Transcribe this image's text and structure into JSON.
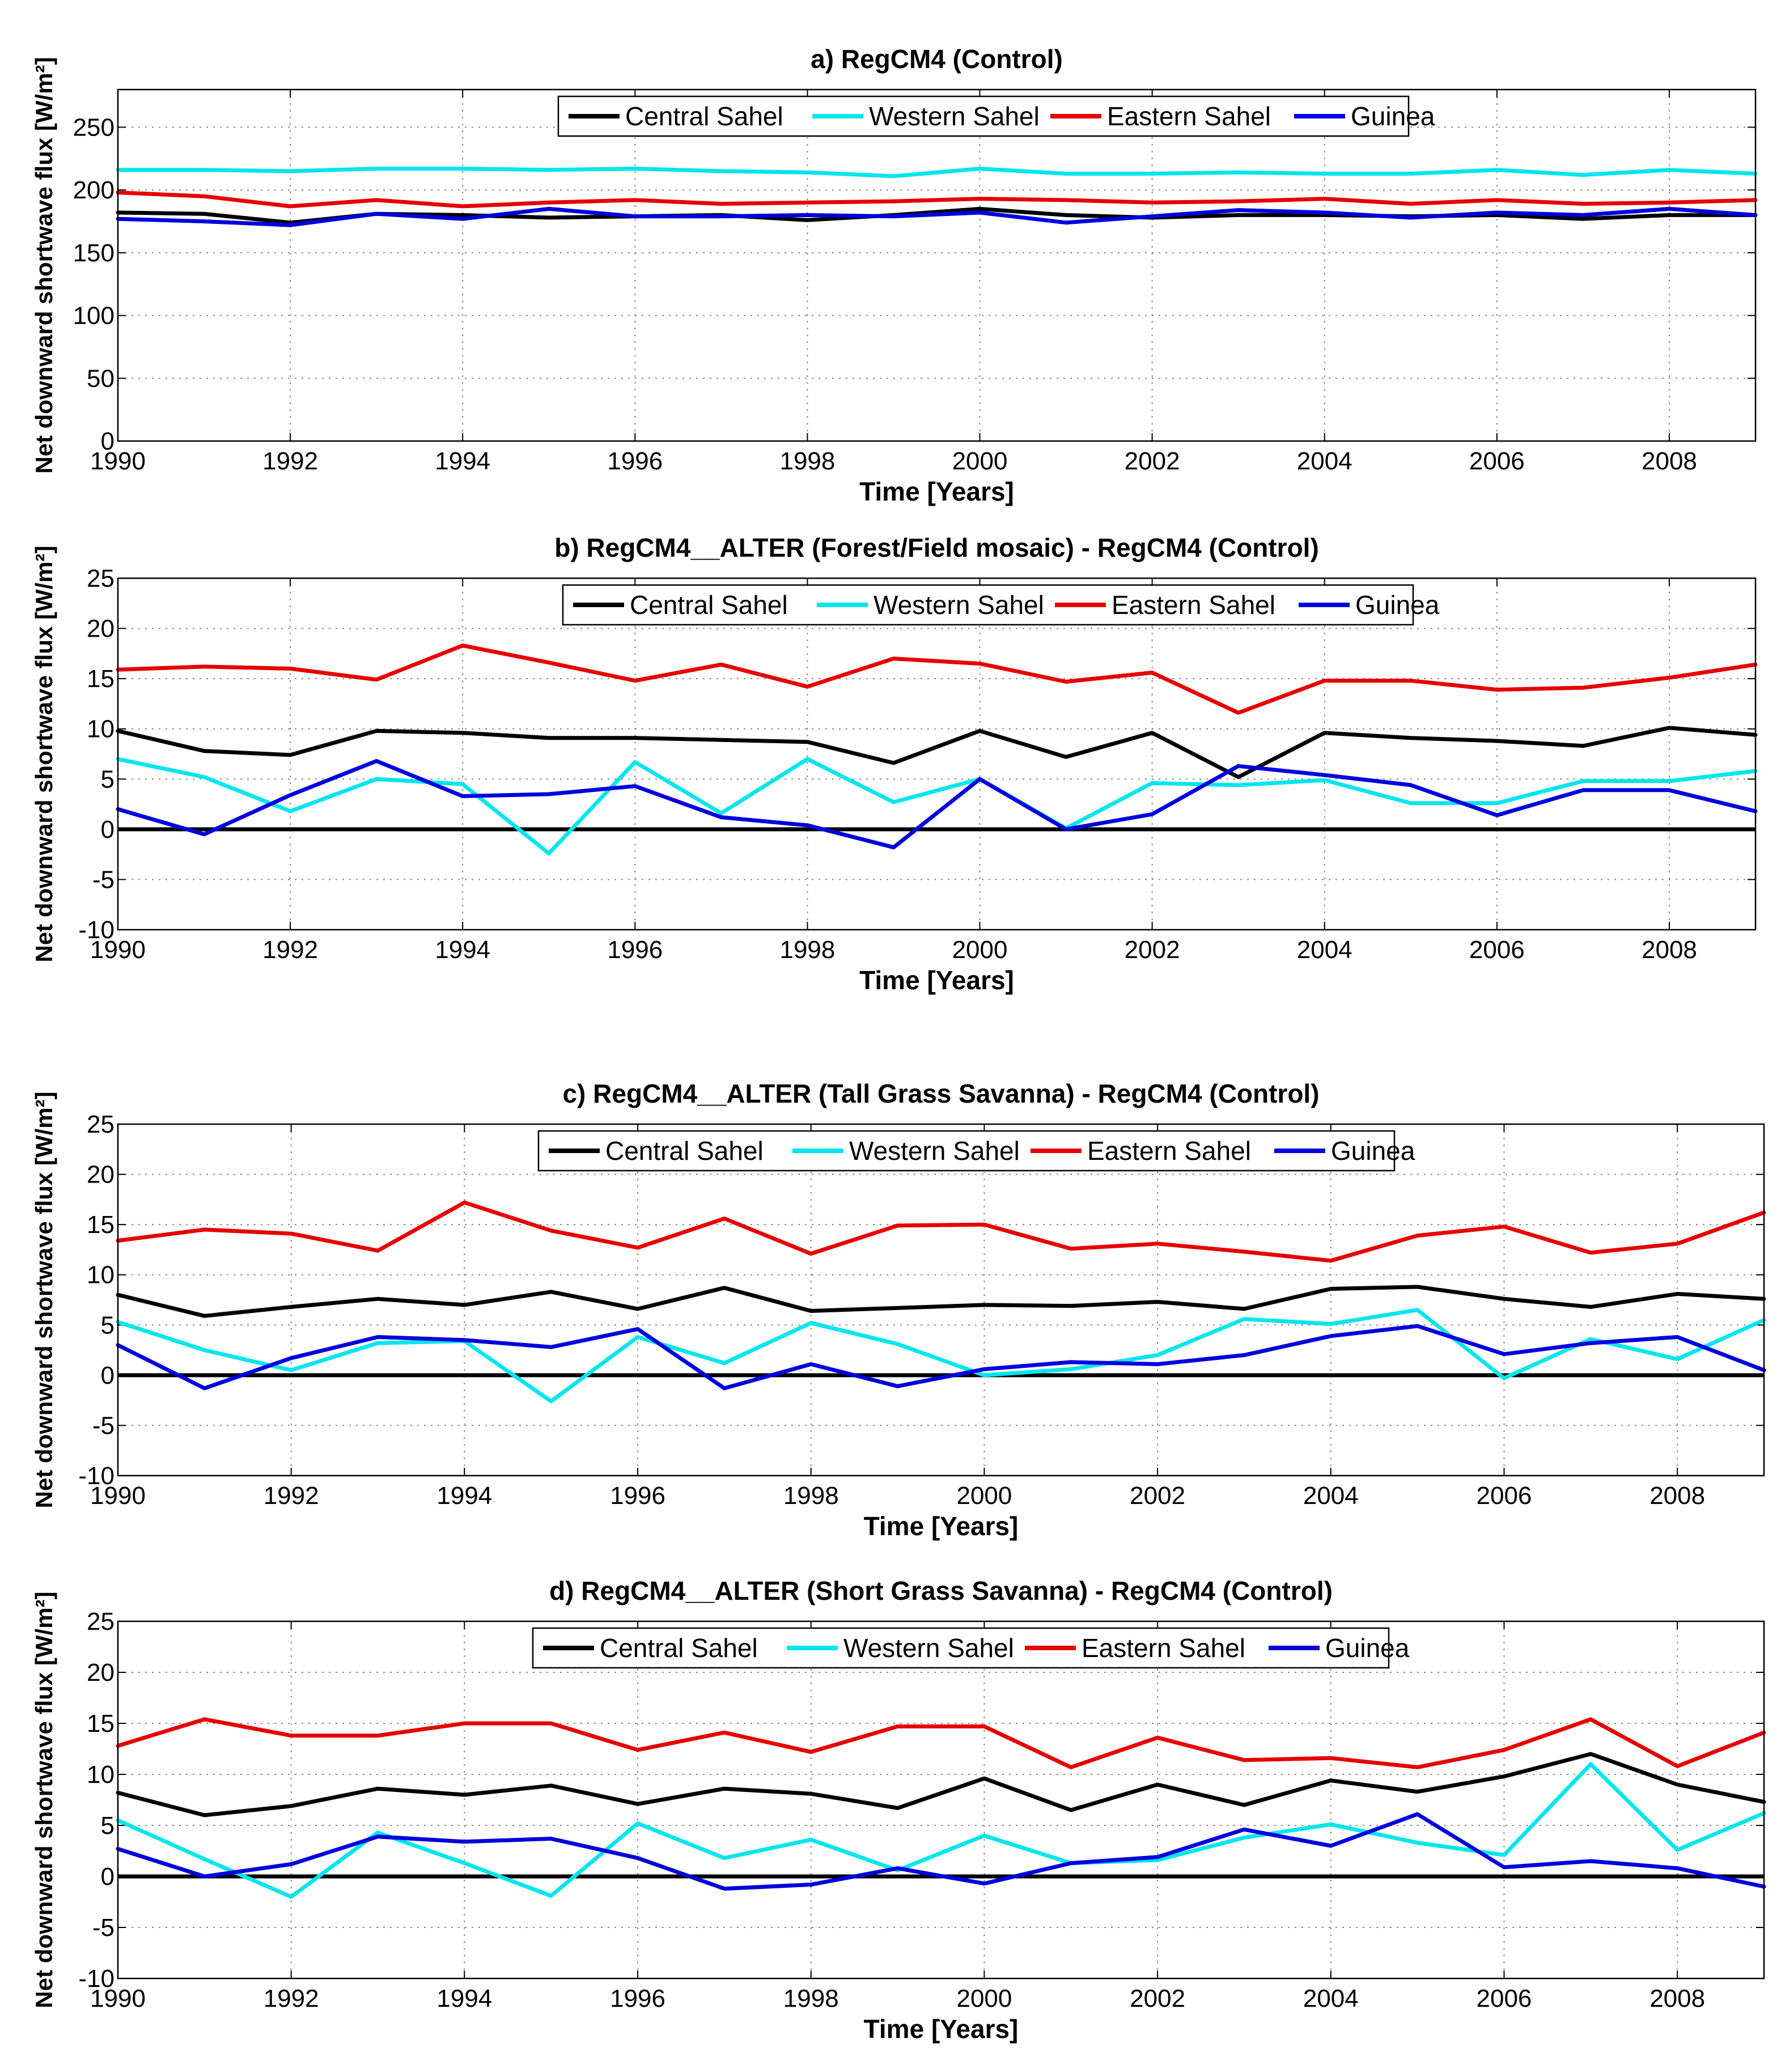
{
  "colors": {
    "Central Sahel": "#000000",
    "Western Sahel": "#00e5ee",
    "Eastern Sahel": "#e60000",
    "Guinea": "#0000dd",
    "zero_line": "#000000",
    "grid": "#888888"
  },
  "chart_data": [
    {
      "id": "a",
      "type": "line",
      "title": "a) RegCM4 (Control)",
      "xlabel": "Time [Years]",
      "ylabel": "Net downward shortwave flux  [W/m²]",
      "xlim": [
        1990,
        2009
      ],
      "ylim": [
        0,
        280
      ],
      "xticks": [
        1990,
        1992,
        1994,
        1996,
        1998,
        2000,
        2002,
        2004,
        2006,
        2008
      ],
      "yticks": [
        0,
        50,
        100,
        150,
        200,
        250
      ],
      "legend": [
        "Central Sahel",
        "Western Sahel",
        "Eastern Sahel",
        "Guinea"
      ],
      "legend_position": "top",
      "grid": true,
      "zero_line": false,
      "x": [
        1990,
        1991,
        1992,
        1993,
        1994,
        1995,
        1996,
        1997,
        1998,
        1999,
        2000,
        2001,
        2002,
        2003,
        2004,
        2005,
        2006,
        2007,
        2008,
        2009
      ],
      "series": [
        {
          "name": "Central Sahel",
          "values": [
            182,
            181,
            174,
            181,
            180,
            178,
            179,
            180,
            176,
            180,
            185,
            180,
            178,
            180,
            180,
            179,
            180,
            177,
            180,
            180
          ]
        },
        {
          "name": "Western Sahel",
          "values": [
            216,
            216,
            215,
            217,
            217,
            216,
            217,
            215,
            214,
            211,
            217,
            213,
            213,
            214,
            213,
            213,
            216,
            212,
            216,
            213
          ]
        },
        {
          "name": "Eastern Sahel",
          "values": [
            198,
            195,
            187,
            192,
            187,
            190,
            192,
            189,
            190,
            191,
            193,
            192,
            190,
            191,
            193,
            189,
            192,
            189,
            190,
            192
          ]
        },
        {
          "name": "Guinea",
          "values": [
            177,
            175,
            172,
            181,
            177,
            185,
            179,
            179,
            180,
            179,
            182,
            174,
            179,
            184,
            182,
            178,
            182,
            180,
            185,
            180
          ]
        }
      ]
    },
    {
      "id": "b",
      "type": "line",
      "title": "b) RegCM4__ALTER (Forest/Field mosaic) - RegCM4 (Control)",
      "xlabel": "Time [Years]",
      "ylabel": "Net downward shortwave flux  [W/m²]",
      "xlim": [
        1990,
        2009
      ],
      "ylim": [
        -10,
        25
      ],
      "xticks": [
        1990,
        1992,
        1994,
        1996,
        1998,
        2000,
        2002,
        2004,
        2006,
        2008
      ],
      "yticks": [
        -10,
        -5,
        0,
        5,
        10,
        15,
        20,
        25
      ],
      "legend": [
        "Central Sahel",
        "Western Sahel",
        "Eastern Sahel",
        "Guinea"
      ],
      "legend_position": "top",
      "grid": true,
      "zero_line": true,
      "x": [
        1990,
        1991,
        1992,
        1993,
        1994,
        1995,
        1996,
        1997,
        1998,
        1999,
        2000,
        2001,
        2002,
        2003,
        2004,
        2005,
        2006,
        2007,
        2008,
        2009
      ],
      "series": [
        {
          "name": "Central Sahel",
          "values": [
            9.8,
            7.8,
            7.4,
            9.8,
            9.6,
            9.1,
            9.1,
            8.9,
            8.7,
            6.6,
            9.8,
            7.2,
            9.6,
            5.2,
            9.6,
            9.1,
            8.8,
            8.3,
            10.1,
            9.4
          ]
        },
        {
          "name": "Western Sahel",
          "values": [
            7.0,
            5.2,
            1.8,
            5.0,
            4.5,
            -2.4,
            6.7,
            1.6,
            7.0,
            2.7,
            5.0,
            0.1,
            4.6,
            4.4,
            4.9,
            2.6,
            2.6,
            4.8,
            4.8,
            5.8
          ]
        },
        {
          "name": "Eastern Sahel",
          "values": [
            15.9,
            16.2,
            16.0,
            14.9,
            18.3,
            16.6,
            14.8,
            16.4,
            14.2,
            17.0,
            16.5,
            14.7,
            15.6,
            11.6,
            14.8,
            14.8,
            13.9,
            14.1,
            15.1,
            16.4
          ]
        },
        {
          "name": "Guinea",
          "values": [
            2.0,
            -0.5,
            3.4,
            6.8,
            3.3,
            3.5,
            4.3,
            1.2,
            0.4,
            -1.8,
            5.0,
            0.0,
            1.5,
            6.3,
            5.4,
            4.4,
            1.4,
            3.9,
            3.9,
            1.8
          ]
        }
      ]
    },
    {
      "id": "c",
      "type": "line",
      "title": "c)  RegCM4__ALTER (Tall Grass Savanna) - RegCM4 (Control)",
      "xlabel": "Time [Years]",
      "ylabel": "Net downward shortwave flux  [W/m²]",
      "xlim": [
        1990,
        2009
      ],
      "ylim": [
        -10,
        25
      ],
      "xticks": [
        1990,
        1992,
        1994,
        1996,
        1998,
        2000,
        2002,
        2004,
        2006,
        2008
      ],
      "yticks": [
        -10,
        -5,
        0,
        5,
        10,
        15,
        20,
        25
      ],
      "legend": [
        "Central Sahel",
        "Western Sahel",
        "Eastern Sahel",
        "Guinea"
      ],
      "legend_position": "top",
      "grid": true,
      "zero_line": true,
      "x": [
        1990,
        1991,
        1992,
        1993,
        1994,
        1995,
        1996,
        1997,
        1998,
        1999,
        2000,
        2001,
        2002,
        2003,
        2004,
        2005,
        2006,
        2007,
        2008,
        2009
      ],
      "series": [
        {
          "name": "Central Sahel",
          "values": [
            8.0,
            5.9,
            6.8,
            7.6,
            7.0,
            8.3,
            6.6,
            8.7,
            6.4,
            6.7,
            7.0,
            6.9,
            7.3,
            6.6,
            8.6,
            8.8,
            7.6,
            6.8,
            8.1,
            7.6
          ]
        },
        {
          "name": "Western Sahel",
          "values": [
            5.3,
            2.5,
            0.5,
            3.2,
            3.4,
            -2.6,
            3.8,
            1.2,
            5.2,
            3.1,
            0.0,
            0.6,
            2.0,
            5.6,
            5.1,
            6.5,
            -0.3,
            3.6,
            1.6,
            5.5
          ]
        },
        {
          "name": "Eastern Sahel",
          "values": [
            13.4,
            14.5,
            14.1,
            12.4,
            17.2,
            14.4,
            12.7,
            15.6,
            12.1,
            14.9,
            15.0,
            12.6,
            13.1,
            12.3,
            11.4,
            13.9,
            14.8,
            12.2,
            13.1,
            16.2
          ]
        },
        {
          "name": "Guinea",
          "values": [
            3.0,
            -1.3,
            1.7,
            3.8,
            3.5,
            2.8,
            4.6,
            -1.3,
            1.1,
            -1.1,
            0.6,
            1.3,
            1.1,
            2.0,
            3.9,
            4.9,
            2.1,
            3.2,
            3.8,
            0.5
          ]
        }
      ]
    },
    {
      "id": "d",
      "type": "line",
      "title": "d) RegCM4__ALTER (Short Grass Savanna) - RegCM4 (Control)",
      "xlabel": "Time [Years]",
      "ylabel": "Net downward shortwave flux [W/m²]",
      "xlim": [
        1990,
        2009
      ],
      "ylim": [
        -10,
        25
      ],
      "xticks": [
        1990,
        1992,
        1994,
        1996,
        1998,
        2000,
        2002,
        2004,
        2006,
        2008
      ],
      "yticks": [
        -10,
        -5,
        0,
        5,
        10,
        15,
        20,
        25
      ],
      "legend": [
        "Central Sahel",
        "Western Sahel",
        "Eastern Sahel",
        "Guinea"
      ],
      "legend_position": "top",
      "grid": true,
      "zero_line": true,
      "x": [
        1990,
        1991,
        1992,
        1993,
        1994,
        1995,
        1996,
        1997,
        1998,
        1999,
        2000,
        2001,
        2002,
        2003,
        2004,
        2005,
        2006,
        2007,
        2008,
        2009
      ],
      "series": [
        {
          "name": "Central Sahel",
          "values": [
            8.2,
            6.0,
            6.9,
            8.6,
            8.0,
            8.9,
            7.1,
            8.6,
            8.1,
            6.7,
            9.6,
            6.5,
            9.0,
            7.0,
            9.4,
            8.3,
            9.8,
            12.0,
            9.0,
            7.3
          ]
        },
        {
          "name": "Western Sahel",
          "values": [
            5.5,
            1.7,
            -2.0,
            4.3,
            1.3,
            -1.9,
            5.2,
            1.8,
            3.6,
            0.6,
            4.0,
            1.3,
            1.6,
            3.8,
            5.1,
            3.3,
            2.1,
            11.0,
            2.6,
            6.2
          ]
        },
        {
          "name": "Eastern Sahel",
          "values": [
            12.8,
            15.4,
            13.8,
            13.8,
            15.0,
            15.0,
            12.4,
            14.1,
            12.2,
            14.7,
            14.7,
            10.7,
            13.6,
            11.4,
            11.6,
            10.7,
            12.4,
            15.4,
            10.8,
            14.1
          ]
        },
        {
          "name": "Guinea",
          "values": [
            2.7,
            0.0,
            1.2,
            3.9,
            3.4,
            3.7,
            1.8,
            -1.2,
            -0.8,
            0.8,
            -0.7,
            1.3,
            1.9,
            4.6,
            3.0,
            6.1,
            0.9,
            1.5,
            0.8,
            -1.0
          ]
        }
      ]
    }
  ]
}
